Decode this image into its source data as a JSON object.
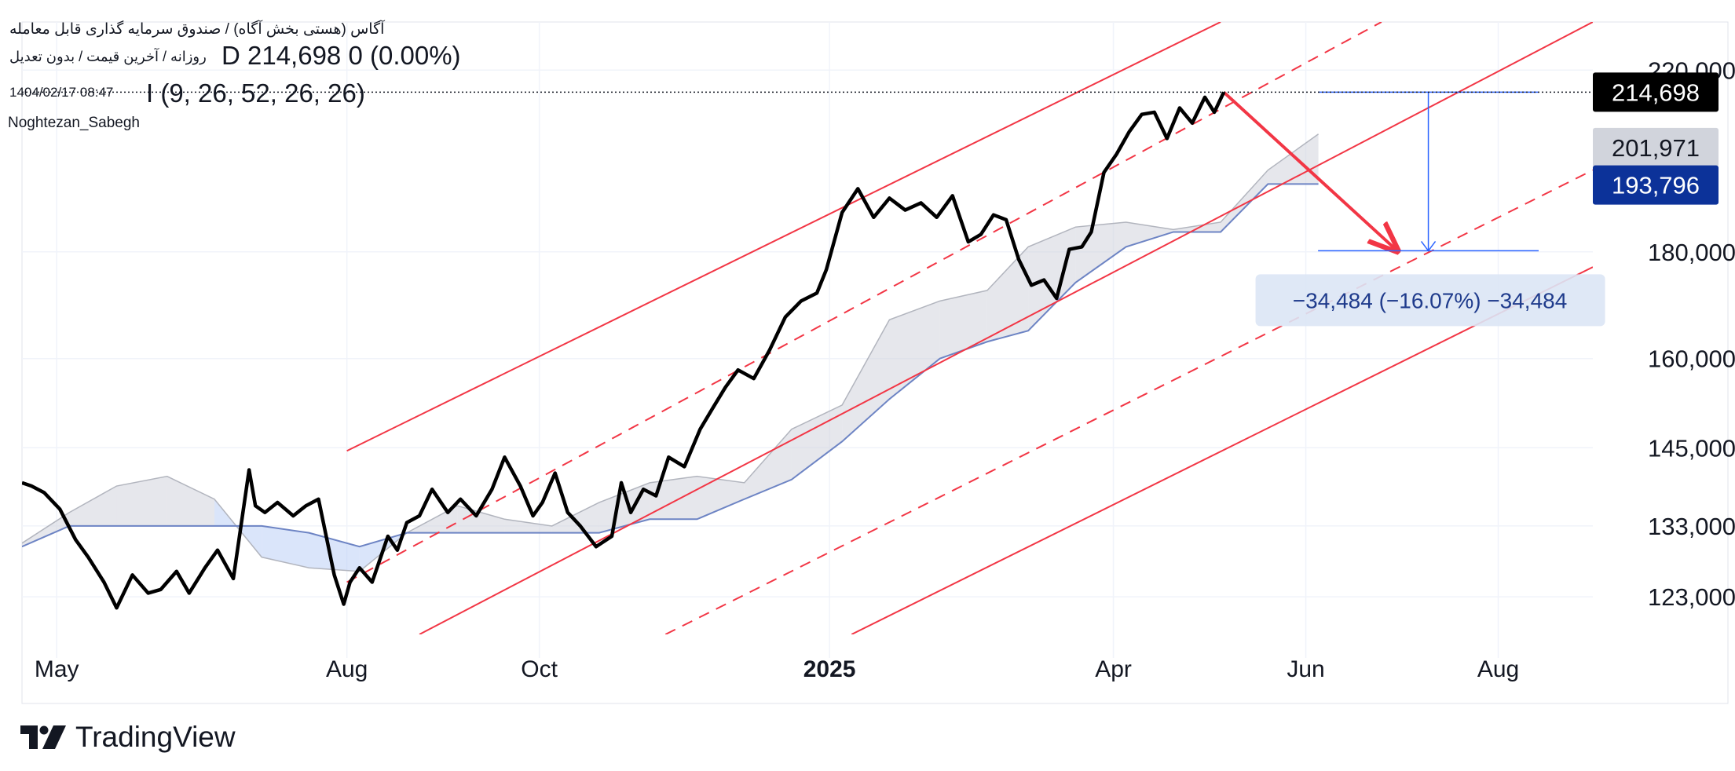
{
  "header": {
    "title": "آگاس (هستی بخش آگاه) / صندوق سرمایه گذاری قابل معامله",
    "subtitle": "روزانه / آخرین قیمت / بدون تعدیل",
    "ohlc": "D  214,698  0 (0.00%)",
    "timestamp": "1404/02/17 08:47",
    "indicator": "I (9, 26, 52, 26, 26)",
    "user": "Noghtezan_Sabegh"
  },
  "branding": {
    "label": "TradingView",
    "logo_icon": "tradingview-logo-icon"
  },
  "colors": {
    "price_line": "#000000",
    "channel": "#f23645",
    "measure": "#2962ff",
    "cloud_fill": "#d1d4dc",
    "cloud_fill_neg": "#bbd0f5",
    "baseline": "#6d84c4",
    "badge_last": "#000000",
    "badge_mid": "#d1d4dc",
    "badge_blue": "#0c3299"
  },
  "chart_data": {
    "type": "line",
    "y_scale": "log",
    "ylim": [
      118000,
      232000
    ],
    "xlim": [
      "2024-04-20",
      "2025-08-31"
    ],
    "y_ticks": [
      "220,000",
      "180,000",
      "160,000",
      "145,000",
      "133,000",
      "123,000"
    ],
    "y_tick_values": [
      220000,
      180000,
      160000,
      145000,
      133000,
      123000
    ],
    "x_ticks": [
      {
        "label": "May",
        "date": "2024-05-01",
        "bold": false
      },
      {
        "label": "Aug",
        "date": "2024-08-01",
        "bold": false
      },
      {
        "label": "Oct",
        "date": "2024-10-01",
        "bold": false
      },
      {
        "label": "2025",
        "date": "2025-01-01",
        "bold": true
      },
      {
        "label": "Apr",
        "date": "2025-04-01",
        "bold": false
      },
      {
        "label": "Jun",
        "date": "2025-06-01",
        "bold": false
      },
      {
        "label": "Aug",
        "date": "2025-08-01",
        "bold": false
      }
    ],
    "price_labels": [
      {
        "text": "214,698",
        "value": 214698,
        "style": "last"
      },
      {
        "text": "201,971",
        "value": 201971,
        "style": "mid"
      },
      {
        "text": "193,796",
        "value": 193796,
        "style": "blue"
      }
    ],
    "last_price": 214698,
    "measure": {
      "label": "−34,484 (−16.07%) −34,484",
      "from": {
        "date": "2025-05-06",
        "value": 214698
      },
      "to": {
        "date": "2025-06-30",
        "value": 180214
      }
    },
    "series": [
      {
        "role": "price",
        "x": [
          "2024-04-20",
          "2024-04-23",
          "2024-04-27",
          "2024-05-02",
          "2024-05-07",
          "2024-05-11",
          "2024-05-16",
          "2024-05-20",
          "2024-05-25",
          "2024-05-30",
          "2024-06-03",
          "2024-06-08",
          "2024-06-12",
          "2024-06-17",
          "2024-06-21",
          "2024-06-26",
          "2024-07-01",
          "2024-07-03",
          "2024-07-06",
          "2024-07-10",
          "2024-07-15",
          "2024-07-19",
          "2024-07-23",
          "2024-07-28",
          "2024-07-31",
          "2024-08-02",
          "2024-08-05",
          "2024-08-09",
          "2024-08-14",
          "2024-08-17",
          "2024-08-20",
          "2024-08-24",
          "2024-08-28",
          "2024-09-02",
          "2024-09-06",
          "2024-09-11",
          "2024-09-16",
          "2024-09-20",
          "2024-09-25",
          "2024-09-29",
          "2024-10-02",
          "2024-10-06",
          "2024-10-10",
          "2024-10-14",
          "2024-10-19",
          "2024-10-24",
          "2024-10-27",
          "2024-10-30",
          "2024-11-03",
          "2024-11-07",
          "2024-11-11",
          "2024-11-16",
          "2024-11-21",
          "2024-11-25",
          "2024-11-29",
          "2024-12-03",
          "2024-12-08",
          "2024-12-13",
          "2024-12-18",
          "2024-12-23",
          "2024-12-28",
          "2024-12-31",
          "2025-01-05",
          "2025-01-10",
          "2025-01-15",
          "2025-01-20",
          "2025-01-25",
          "2025-01-30",
          "2025-02-04",
          "2025-02-09",
          "2025-02-14",
          "2025-02-18",
          "2025-02-22",
          "2025-02-26",
          "2025-03-02",
          "2025-03-06",
          "2025-03-10",
          "2025-03-14",
          "2025-03-18",
          "2025-03-22",
          "2025-03-25",
          "2025-03-29",
          "2025-04-02",
          "2025-04-06",
          "2025-04-10",
          "2025-04-14",
          "2025-04-18",
          "2025-04-22",
          "2025-04-26",
          "2025-04-30",
          "2025-05-03",
          "2025-05-06"
        ],
        "values": [
          139500,
          139000,
          138000,
          135500,
          131000,
          128500,
          125000,
          121500,
          126000,
          123500,
          124000,
          126500,
          123500,
          127000,
          129500,
          125500,
          141500,
          136000,
          135000,
          136500,
          134500,
          136000,
          137000,
          126000,
          122000,
          125000,
          127000,
          125000,
          131500,
          129500,
          133500,
          134500,
          138500,
          135000,
          137000,
          134500,
          138500,
          143500,
          139000,
          134500,
          136500,
          141000,
          135000,
          133000,
          130000,
          131500,
          139500,
          135000,
          138500,
          137500,
          143500,
          142000,
          148000,
          151500,
          155000,
          158000,
          156500,
          161500,
          167500,
          170500,
          172000,
          176500,
          188000,
          193000,
          187000,
          191000,
          188500,
          190000,
          187000,
          191500,
          182000,
          183500,
          187500,
          186500,
          178500,
          173500,
          174500,
          171000,
          180500,
          181000,
          184000,
          196500,
          200500,
          205500,
          209500,
          210000,
          204000,
          211000,
          207500,
          213500,
          210000,
          214698
        ]
      }
    ],
    "annotations": [
      {
        "type": "line",
        "style": "solid",
        "color": "#f23645",
        "from": {
          "date": "2024-08-01",
          "value": 144500
        },
        "to": {
          "date": "2025-05-05",
          "value": 232000
        }
      },
      {
        "type": "line",
        "style": "dashed",
        "color": "#f23645",
        "from": {
          "date": "2024-08-01",
          "value": 125000
        },
        "to": {
          "date": "2025-06-25",
          "value": 232000
        }
      },
      {
        "type": "line",
        "style": "solid",
        "color": "#f23645",
        "from": {
          "date": "2024-08-24",
          "value": 118000
        },
        "to": {
          "date": "2025-08-31",
          "value": 232000
        }
      },
      {
        "type": "line",
        "style": "dashed",
        "color": "#f23645",
        "from": {
          "date": "2024-11-10",
          "value": 118000
        },
        "to": {
          "date": "2025-08-31",
          "value": 197000
        }
      },
      {
        "type": "line",
        "style": "solid",
        "color": "#f23645",
        "from": {
          "date": "2025-01-08",
          "value": 118000
        },
        "to": {
          "date": "2025-08-31",
          "value": 177000
        }
      },
      {
        "type": "arrow-line",
        "color": "#f23645",
        "from": {
          "date": "2025-05-06",
          "value": 214698
        },
        "to": {
          "date": "2025-06-30",
          "value": 180214
        }
      }
    ],
    "ichimoku_cloud": {
      "x": [
        "2024-04-20",
        "2024-05-05",
        "2024-05-20",
        "2024-06-05",
        "2024-06-20",
        "2024-07-05",
        "2024-07-20",
        "2024-08-05",
        "2024-08-20",
        "2024-09-05",
        "2024-09-20",
        "2024-10-05",
        "2024-10-20",
        "2024-11-05",
        "2024-11-20",
        "2024-12-05",
        "2024-12-20",
        "2025-01-05",
        "2025-01-20",
        "2025-02-05",
        "2025-02-20",
        "2025-03-05",
        "2025-03-20",
        "2025-04-05",
        "2025-04-20",
        "2025-05-05",
        "2025-05-20",
        "2025-06-05"
      ],
      "span_a": [
        130500,
        135000,
        139000,
        140500,
        137000,
        128500,
        127000,
        126500,
        132000,
        136000,
        134000,
        133000,
        136500,
        139500,
        140500,
        139500,
        148000,
        152000,
        167000,
        170500,
        172500,
        181000,
        185000,
        186000,
        184500,
        186000,
        197000,
        205000
      ],
      "span_b": [
        130000,
        133000,
        133000,
        133000,
        133000,
        133000,
        132000,
        130000,
        132000,
        132000,
        132000,
        132000,
        132000,
        134000,
        134000,
        137000,
        140000,
        146000,
        153000,
        160000,
        163000,
        165000,
        174000,
        181000,
        184000,
        184000,
        194000,
        194000
      ]
    }
  }
}
